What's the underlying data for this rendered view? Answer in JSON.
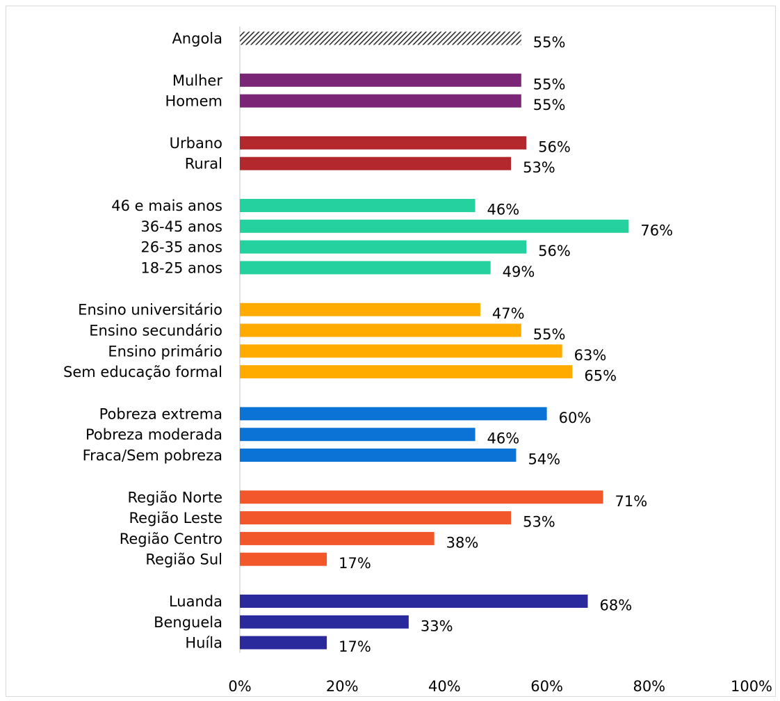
{
  "chart_data": {
    "type": "bar",
    "orientation": "horizontal",
    "title": "",
    "xlabel": "",
    "ylabel": "",
    "xlim": [
      0,
      100
    ],
    "x_ticks": [
      "0%",
      "20%",
      "40%",
      "60%",
      "80%",
      "100%"
    ],
    "grid": false,
    "value_suffix": "%",
    "groups": [
      {
        "color": "hatched",
        "bars": [
          {
            "label": "Angola",
            "value": 55
          }
        ]
      },
      {
        "color": "#7b2577",
        "bars": [
          {
            "label": "Mulher",
            "value": 55
          },
          {
            "label": "Homem",
            "value": 55
          }
        ]
      },
      {
        "color": "#b3282d",
        "bars": [
          {
            "label": "Urbano",
            "value": 56
          },
          {
            "label": "Rural",
            "value": 53
          }
        ]
      },
      {
        "color": "#26d1a0",
        "bars": [
          {
            "label": "46 e mais anos",
            "value": 46
          },
          {
            "label": "36-45 anos",
            "value": 76
          },
          {
            "label": "26-35 anos",
            "value": 56
          },
          {
            "label": "18-25 anos",
            "value": 49
          }
        ]
      },
      {
        "color": "#ffab00",
        "bars": [
          {
            "label": "Ensino universitário",
            "value": 47
          },
          {
            "label": "Ensino secundário",
            "value": 55
          },
          {
            "label": "Ensino primário",
            "value": 63
          },
          {
            "label": "Sem educação formal",
            "value": 65
          }
        ]
      },
      {
        "color": "#0b72d6",
        "bars": [
          {
            "label": "Pobreza extrema",
            "value": 60
          },
          {
            "label": "Pobreza moderada",
            "value": 46
          },
          {
            "label": "Fraca/Sem pobreza",
            "value": 54
          }
        ]
      },
      {
        "color": "#f2572b",
        "bars": [
          {
            "label": "Região Norte",
            "value": 71
          },
          {
            "label": "Região Leste",
            "value": 53
          },
          {
            "label": "Região Centro",
            "value": 38
          },
          {
            "label": "Região Sul",
            "value": 17
          }
        ]
      },
      {
        "color": "#2a2a9c",
        "bars": [
          {
            "label": "Luanda",
            "value": 68
          },
          {
            "label": "Benguela",
            "value": 33
          },
          {
            "label": "Huíla",
            "value": 17
          }
        ]
      }
    ]
  }
}
